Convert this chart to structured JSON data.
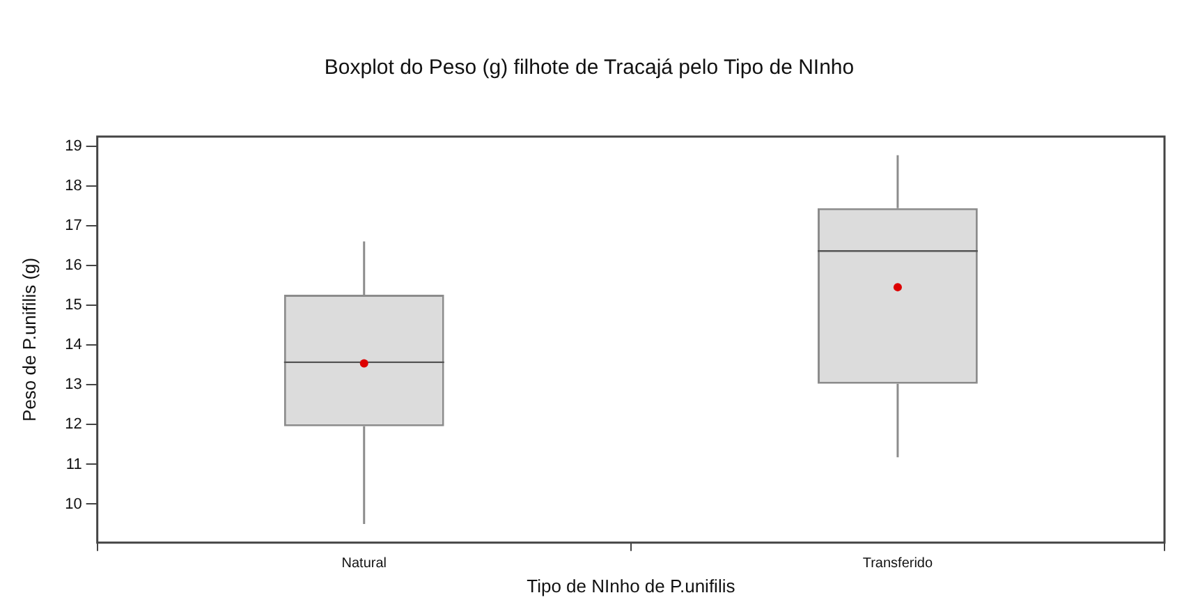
{
  "chart_data": {
    "type": "box",
    "title": "Boxplot do Peso (g) filhote de Tracajá pelo Tipo de NInho",
    "xlabel": "Tipo de NInho de P.unifilis",
    "ylabel": "Peso de P.unifilis (g)",
    "categories": [
      "Natural",
      "Transferido"
    ],
    "color": "#dcdcdc",
    "boxes": [
      {
        "low": 9.5,
        "q1": 11.96,
        "median": 13.57,
        "q3": 15.27,
        "high": 16.61,
        "mean": 13.54
      },
      {
        "low": 11.18,
        "q1": 13.03,
        "median": 16.37,
        "q3": 17.45,
        "high": 18.78,
        "mean": 15.46
      }
    ],
    "ylim": [
      9.03,
      19.25
    ],
    "yticks": [
      10,
      11,
      12,
      13,
      14,
      15,
      16,
      17,
      18,
      19
    ]
  }
}
